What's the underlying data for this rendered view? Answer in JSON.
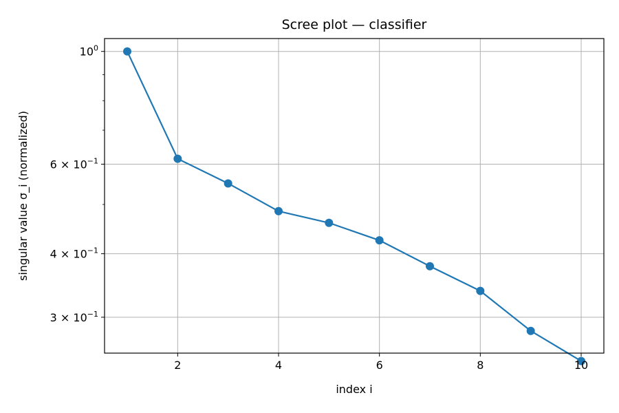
{
  "chart_data": {
    "type": "line",
    "title": "Scree plot — classifier",
    "xlabel": "index i",
    "ylabel": "singular value σ_i (normalized)",
    "y_scale": "log",
    "grid": true,
    "color": "#1f77b4",
    "xlim": [
      0.55,
      10.45
    ],
    "ylim": [
      0.255,
      1.06
    ],
    "x_ticks": [
      2,
      4,
      6,
      8,
      10
    ],
    "y_ticks": [
      {
        "value": 1.0,
        "base": "10",
        "exp": "0"
      },
      {
        "value": 0.6,
        "base": "6 × 10",
        "exp": "−1"
      },
      {
        "value": 0.4,
        "base": "4 × 10",
        "exp": "−1"
      },
      {
        "value": 0.3,
        "base": "3 × 10",
        "exp": "−1"
      }
    ],
    "y_minor_ticks": [
      0.5,
      0.7,
      0.8,
      0.9
    ],
    "series": [
      {
        "x": [
          1,
          2,
          3,
          4,
          5,
          6,
          7,
          8,
          9,
          10
        ],
        "values": [
          1.0,
          0.615,
          0.55,
          0.485,
          0.46,
          0.425,
          0.378,
          0.338,
          0.282,
          0.246
        ]
      }
    ]
  }
}
